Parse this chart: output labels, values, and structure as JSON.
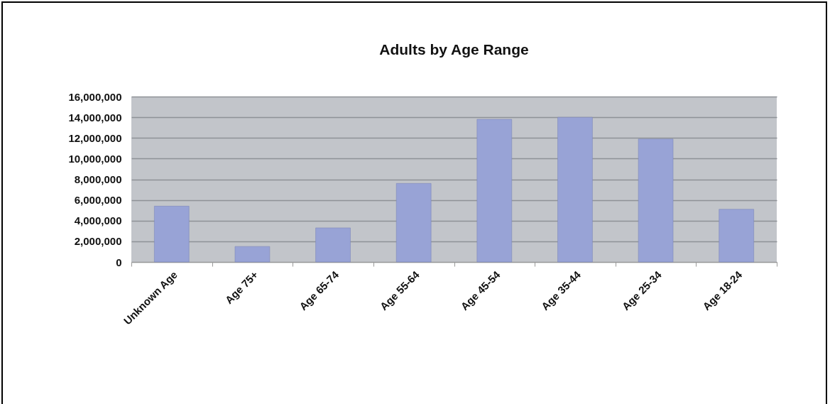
{
  "chart_data": {
    "type": "bar",
    "title": "Adults by Age Range",
    "categories": [
      "Unknown Age",
      "Age 75+",
      "Age 65-74",
      "Age 55-64",
      "Age 45-54",
      "Age 35-44",
      "Age 25-34",
      "Age 18-24"
    ],
    "values": [
      5400000,
      1500000,
      3300000,
      7600000,
      13800000,
      14000000,
      11900000,
      5100000
    ],
    "color": "#98a3d6",
    "ylim": [
      0,
      16000000
    ],
    "yticks": [
      0,
      {
        "value": 2000000,
        "label": "2,000,000"
      },
      {
        "value": 4000000,
        "label": "4,000,000"
      },
      {
        "value": 6000000,
        "label": "6,000,000"
      },
      {
        "value": 8000000,
        "label": "8,000,000"
      },
      {
        "value": 10000000,
        "label": "10,000,000"
      },
      {
        "value": 12000000,
        "label": "12,000,000"
      },
      {
        "value": 14000000,
        "label": "14,000,000"
      },
      {
        "value": 16000000,
        "label": "16,000,000"
      }
    ],
    "grid": "y"
  }
}
